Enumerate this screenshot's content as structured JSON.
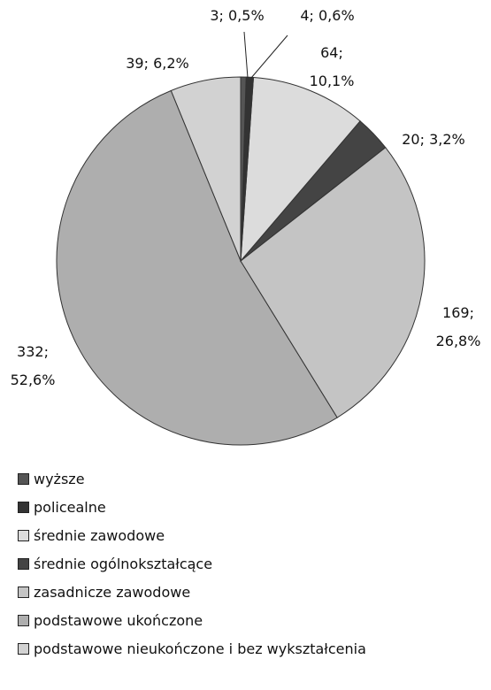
{
  "chart_data": {
    "type": "pie",
    "categories": [
      "wyższe",
      "policealne",
      "średnie zawodowe",
      "średnie ogólnokształcące",
      "zasadnicze zawodowe",
      "podstawowe ukończone",
      "podstawowe nieukończone i bez wykształcenia"
    ],
    "values": [
      3,
      4,
      64,
      20,
      169,
      332,
      39
    ],
    "value_labels": [
      "3; 0,5%",
      "4; 0,6%",
      "64; 10,1%",
      "20; 3,2%",
      "169; 26,8%",
      "332; 52,6%",
      "39; 6,2%"
    ],
    "colors": [
      "#555555",
      "#333333",
      "#dcdcdc",
      "#444444",
      "#c4c4c4",
      "#aeaeae",
      "#d2d2d2"
    ],
    "legend": "bottom"
  }
}
